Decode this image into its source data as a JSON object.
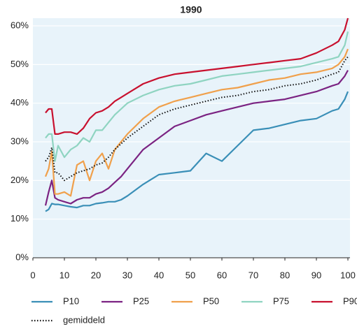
{
  "chart_data": {
    "type": "line",
    "title": "1990",
    "x": [
      4,
      5,
      6,
      7,
      8,
      10,
      12,
      14,
      16,
      18,
      20,
      22,
      24,
      26,
      28,
      30,
      35,
      40,
      45,
      50,
      55,
      60,
      65,
      70,
      75,
      80,
      85,
      90,
      95,
      97,
      99,
      100
    ],
    "series": [
      {
        "name": "P10",
        "color": "#3a8fb7",
        "values": [
          12,
          12.5,
          14,
          13.8,
          13.8,
          13.5,
          13.2,
          13,
          13.5,
          13.5,
          14,
          14.2,
          14.5,
          14.5,
          15,
          16,
          19,
          21.5,
          22,
          22.5,
          27,
          25,
          29,
          33,
          33.5,
          34.5,
          35.5,
          36,
          38,
          38.5,
          41,
          43
        ]
      },
      {
        "name": "P25",
        "color": "#7b2382",
        "values": [
          13.5,
          17,
          20,
          15.5,
          15,
          14.5,
          14,
          15,
          15.5,
          15.5,
          16.5,
          17,
          18,
          19.5,
          21,
          23,
          28,
          31,
          34,
          35.5,
          37,
          38,
          39,
          40,
          40.5,
          41,
          42,
          43,
          44.5,
          45,
          47,
          48.5
        ]
      },
      {
        "name": "P50",
        "color": "#f0a04b",
        "values": [
          21,
          23,
          27.5,
          16.5,
          16.5,
          17,
          16,
          24,
          25,
          20,
          25,
          27,
          23,
          28,
          30,
          32,
          36,
          39,
          40.5,
          41.5,
          42.5,
          43.5,
          44,
          45,
          46,
          46.5,
          47.5,
          48,
          49,
          50,
          52,
          54
        ]
      },
      {
        "name": "P75",
        "color": "#8fd4c1",
        "values": [
          31,
          32,
          32,
          25,
          29,
          26,
          28,
          29,
          31,
          30,
          33,
          33,
          35,
          37,
          38.5,
          40,
          42,
          43.5,
          44.5,
          45,
          46,
          47,
          47.5,
          48,
          48.5,
          49,
          49.5,
          50.5,
          51.5,
          52,
          55,
          58.5
        ]
      },
      {
        "name": "P90",
        "color": "#c8102e",
        "values": [
          37.5,
          38.5,
          38.5,
          32,
          32,
          32.5,
          32.5,
          32,
          33.5,
          36,
          37.5,
          38,
          39,
          40.5,
          41.5,
          42.5,
          45,
          46.5,
          47.5,
          48,
          48.5,
          49,
          49.5,
          50,
          50.5,
          51,
          51.5,
          53,
          55,
          56,
          59,
          62
        ]
      },
      {
        "name": "gemiddeld",
        "color": "#111111",
        "dash": "dotted",
        "values": [
          25,
          26,
          28.5,
          22,
          22,
          20,
          21,
          22,
          22.5,
          23,
          24,
          24.5,
          26,
          28,
          29.5,
          31,
          34,
          37,
          38.5,
          39.5,
          40.5,
          41.5,
          42,
          43,
          43.5,
          44.5,
          45,
          46,
          47.5,
          48,
          51,
          52
        ]
      }
    ],
    "xlim": [
      0,
      100
    ],
    "ylim": [
      0,
      62
    ],
    "xticks": [
      0,
      10,
      20,
      30,
      40,
      50,
      60,
      70,
      80,
      90,
      100
    ],
    "yticks": [
      {
        "value": 0,
        "label": "0%"
      },
      {
        "value": 10,
        "label": "10%"
      },
      {
        "value": 20,
        "label": "20%"
      },
      {
        "value": 30,
        "label": "30%"
      },
      {
        "value": 40,
        "label": "40%"
      },
      {
        "value": 50,
        "label": "50%"
      },
      {
        "value": 60,
        "label": "60%"
      }
    ],
    "grid": true,
    "background": "#e8f3fa",
    "legend": "bottom"
  }
}
